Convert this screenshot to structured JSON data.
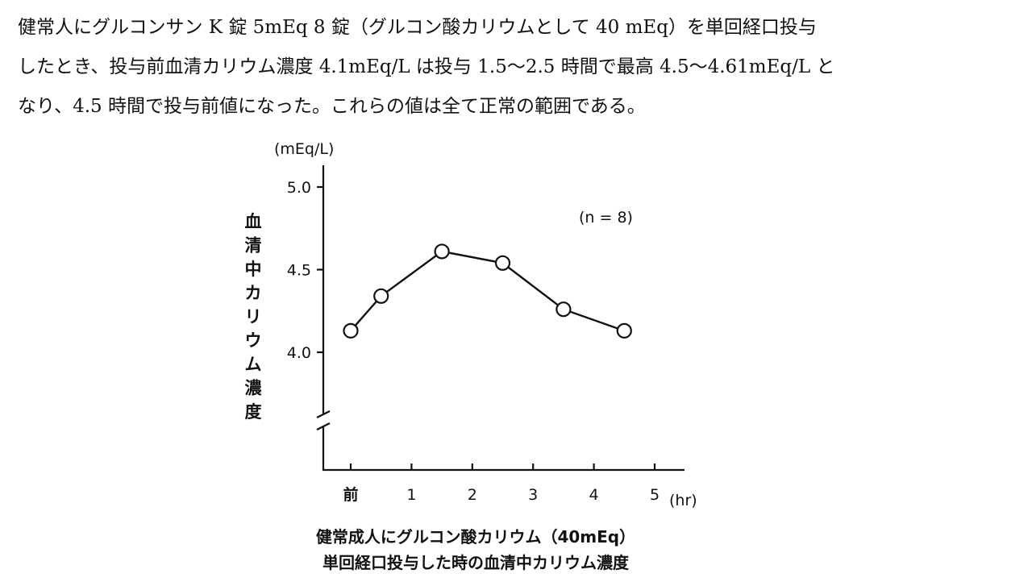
{
  "paragraph": {
    "lines": [
      "健常人にグルコンサン K 錠 5mEq 8 錠（グルコン酸カリウムとして 40 mEq）を単回経口投与",
      "したとき、投与前血清カリウム濃度 4.1mEq/L は投与 1.5〜2.5 時間で最高 4.5〜4.61mEq/L と",
      "なり、4.5 時間で投与前値になった。これらの値は全て正常の範囲である。"
    ]
  },
  "chart_data": {
    "type": "line",
    "title": "",
    "ylabel": "血清中カリウム濃度",
    "yunit": "(mEq/L)",
    "xunit": "(hr)",
    "x_tick_labels": [
      "前",
      "1",
      "2",
      "3",
      "4",
      "5"
    ],
    "x_ticks": [
      0,
      1,
      2,
      3,
      4,
      5
    ],
    "y_tick_labels": [
      "5.0",
      "4.5",
      "4.0"
    ],
    "y_ticks": [
      5.0,
      4.5,
      4.0
    ],
    "ylim": [
      3.3,
      5.13
    ],
    "xlim": [
      -0.45,
      5.5
    ],
    "y_axis_break": true,
    "grid": false,
    "annotation": "(n = 8)",
    "series": [
      {
        "x": [
          0,
          0.5,
          1.5,
          2.5,
          3.5,
          4.5
        ],
        "values": [
          4.13,
          4.34,
          4.61,
          4.54,
          4.26,
          4.13
        ],
        "marker": "open-circle"
      }
    ],
    "caption": [
      "健常成人にグルコン酸カリウム（40mEq）",
      "単回経口投与した時の血清中カリウム濃度"
    ]
  }
}
